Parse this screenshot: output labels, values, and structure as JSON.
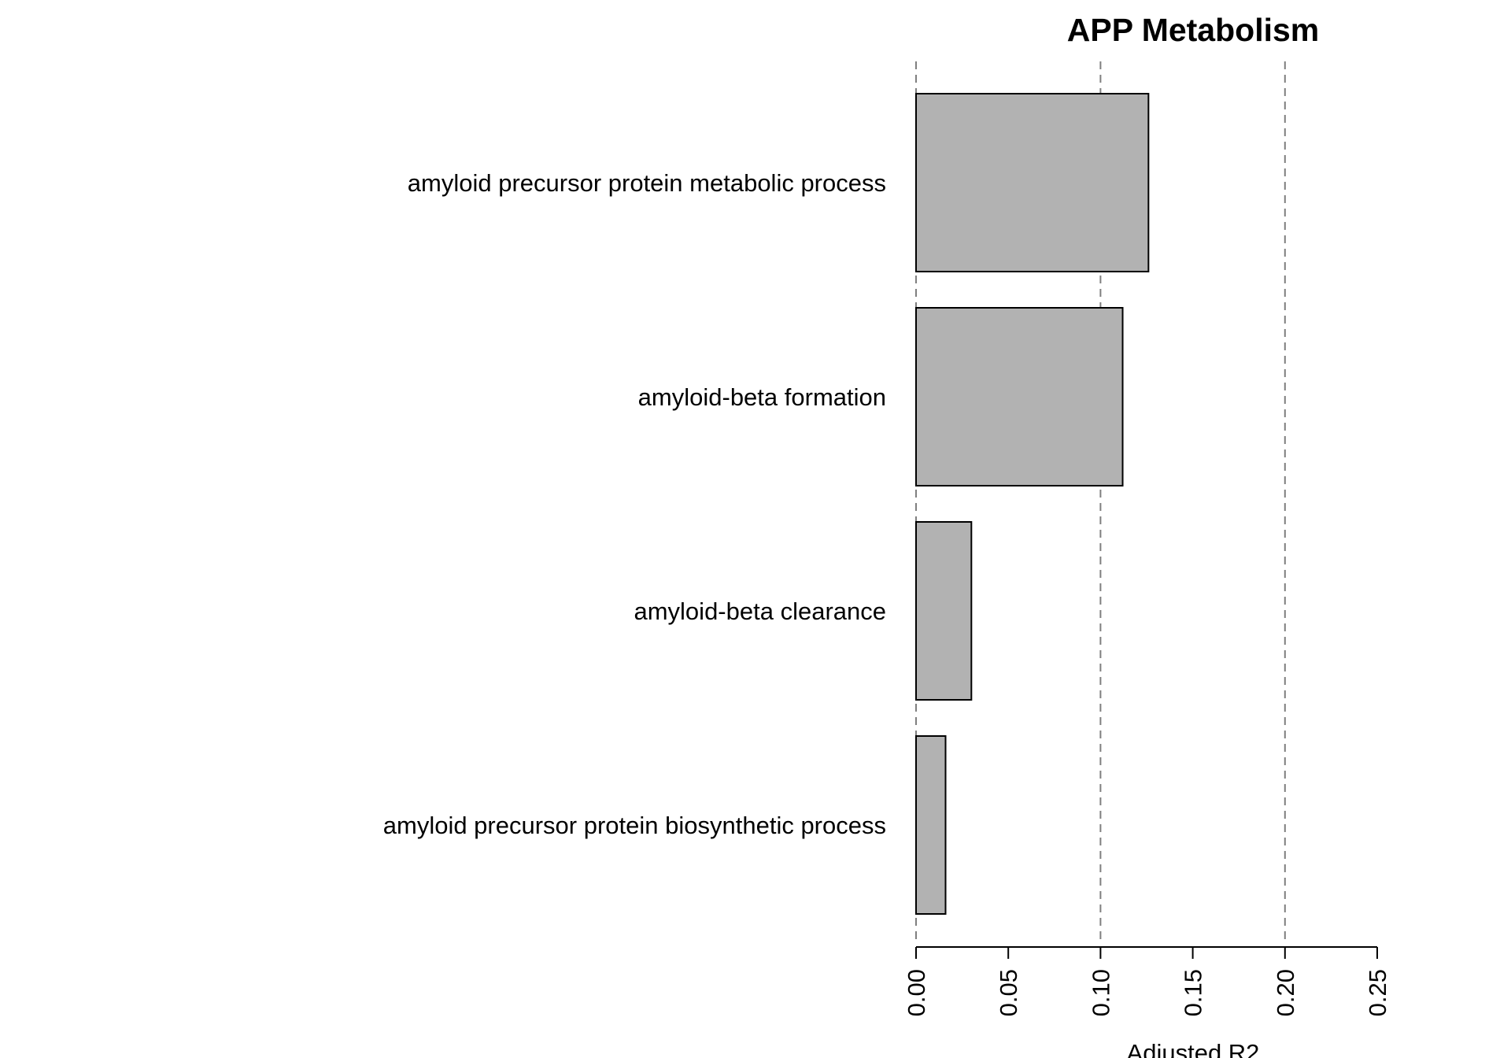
{
  "chart_data": {
    "type": "bar",
    "orientation": "horizontal",
    "title": "APP Metabolism",
    "xlabel": "Adjusted R2",
    "ylabel": "",
    "categories": [
      "amyloid precursor protein metabolic process",
      "amyloid-beta formation",
      "amyloid-beta clearance",
      "amyloid precursor protein biosynthetic process"
    ],
    "values": [
      0.126,
      0.112,
      0.03,
      0.016
    ],
    "xlim": [
      0,
      0.25
    ],
    "xticks": [
      "0.00",
      "0.05",
      "0.10",
      "0.15",
      "0.20",
      "0.25"
    ],
    "tick_values": [
      0,
      0.05,
      0.1,
      0.15,
      0.2,
      0.25
    ],
    "reference_lines": [
      0,
      0.1,
      0.2
    ],
    "reference_line_style": "dashed",
    "colors": {
      "bar_fill": "#b2b2b2",
      "bar_stroke": "#000000",
      "reference_line": "#7f7f7f"
    },
    "grid": false,
    "legend": "none"
  }
}
